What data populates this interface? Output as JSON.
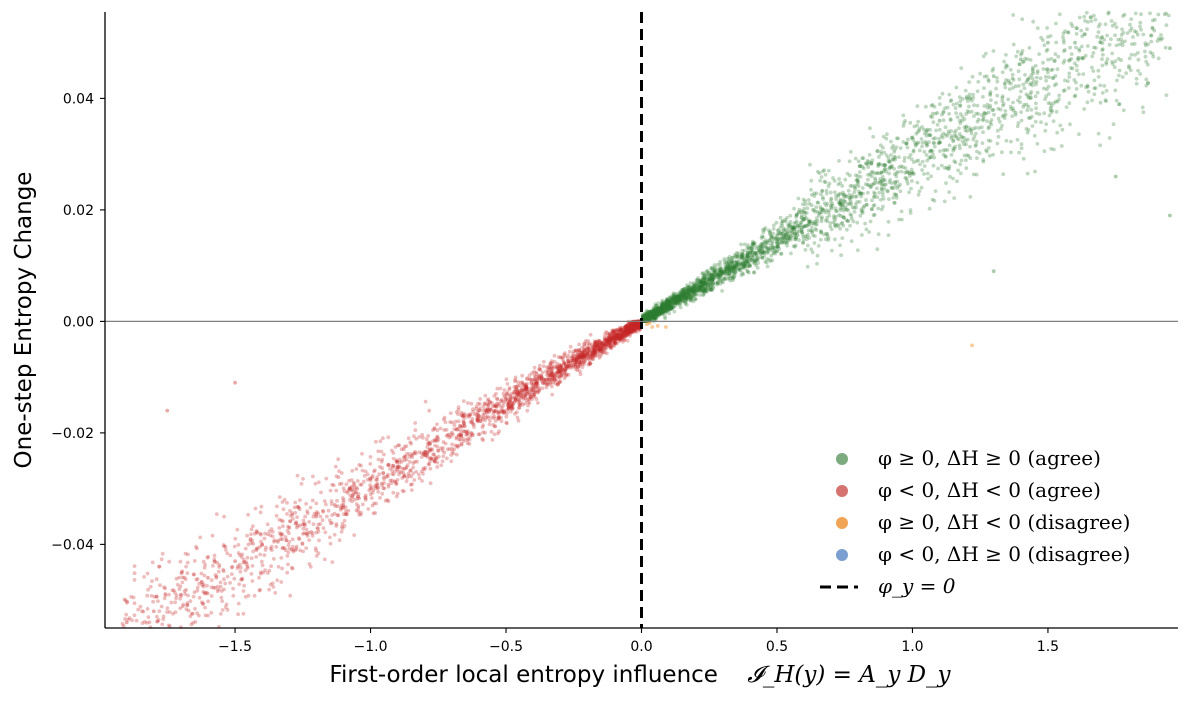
{
  "chart_data": {
    "type": "scatter",
    "xlabel": "First-order local entropy influence",
    "xlabel_math": "𝓘_H(y) = A_y D_y",
    "ylabel": "One-step Entropy Change",
    "xlim": [
      -1.98,
      1.98
    ],
    "ylim": [
      -0.055,
      0.0555
    ],
    "x_ticks": [
      -1.5,
      -1.0,
      -0.5,
      0.0,
      0.5,
      1.0,
      1.5
    ],
    "x_tick_labels": [
      "−1.5",
      "−1.0",
      "−0.5",
      "0.0",
      "0.5",
      "1.0",
      "1.5"
    ],
    "y_ticks": [
      -0.04,
      -0.02,
      0.0,
      0.02,
      0.04
    ],
    "y_tick_labels": [
      "−0.04",
      "−0.02",
      "0.00",
      "0.02",
      "0.04"
    ],
    "grid": false,
    "reference_lines": [
      {
        "orientation": "vertical",
        "value": 0.0,
        "style": "dashed",
        "color": "#000000",
        "legend": "φ_y = 0"
      },
      {
        "orientation": "horizontal",
        "value": 0.0,
        "style": "solid",
        "color": "#808080"
      }
    ],
    "legend_placement": "bottom-right",
    "series": [
      {
        "name": "φ ≥ 0,  ΔH ≥ 0   (agree)",
        "color": "#2e7d32",
        "legend_color": "#7dab80",
        "opacity": 0.3,
        "sample_points": [
          [
            0.05,
            0.001
          ],
          [
            0.1,
            0.002
          ],
          [
            0.2,
            0.004
          ],
          [
            0.3,
            0.007
          ],
          [
            0.4,
            0.01
          ],
          [
            0.5,
            0.014
          ],
          [
            0.6,
            0.017
          ],
          [
            0.7,
            0.022
          ],
          [
            0.8,
            0.025
          ],
          [
            0.9,
            0.028
          ],
          [
            1.0,
            0.033
          ],
          [
            1.1,
            0.036
          ],
          [
            1.2,
            0.04
          ],
          [
            1.3,
            0.044
          ],
          [
            1.4,
            0.047
          ],
          [
            1.5,
            0.05
          ],
          [
            1.6,
            0.05
          ],
          [
            1.7,
            0.051
          ],
          [
            1.95,
            0.049
          ],
          [
            1.95,
            0.019
          ],
          [
            1.75,
            0.026
          ],
          [
            1.3,
            0.009
          ]
        ]
      },
      {
        "name": "φ < 0,  ΔH < 0   (agree)",
        "color": "#c62828",
        "legend_color": "#d4736f",
        "opacity": 0.3,
        "sample_points": [
          [
            -0.05,
            -0.001
          ],
          [
            -0.1,
            -0.003
          ],
          [
            -0.2,
            -0.006
          ],
          [
            -0.3,
            -0.009
          ],
          [
            -0.4,
            -0.012
          ],
          [
            -0.5,
            -0.014
          ],
          [
            -0.6,
            -0.017
          ],
          [
            -0.7,
            -0.02
          ],
          [
            -0.8,
            -0.024
          ],
          [
            -0.9,
            -0.026
          ],
          [
            -1.0,
            -0.03
          ],
          [
            -1.1,
            -0.033
          ],
          [
            -1.2,
            -0.035
          ],
          [
            -1.3,
            -0.037
          ],
          [
            -1.4,
            -0.04
          ],
          [
            -1.5,
            -0.043
          ],
          [
            -1.6,
            -0.046
          ],
          [
            -1.7,
            -0.049
          ],
          [
            -1.8,
            -0.052
          ],
          [
            -1.9,
            -0.054
          ],
          [
            -1.75,
            -0.016
          ],
          [
            -1.5,
            -0.011
          ]
        ]
      },
      {
        "name": "φ ≥ 0,  ΔH < 0   (disagree)",
        "color": "#f5a040",
        "legend_color": "#f0a455",
        "opacity": 0.45,
        "sample_points": [
          [
            0.02,
            -0.0005
          ],
          [
            0.04,
            -0.001
          ],
          [
            0.06,
            -0.0008
          ],
          [
            0.09,
            -0.001
          ],
          [
            0.03,
            -0.0003
          ],
          [
            1.22,
            -0.0043
          ]
        ]
      },
      {
        "name": "φ < 0,  ΔH ≥ 0   (disagree)",
        "color": "#7a9fd0",
        "legend_color": "#7a9fd0",
        "opacity": 0.45,
        "sample_points": []
      }
    ]
  }
}
